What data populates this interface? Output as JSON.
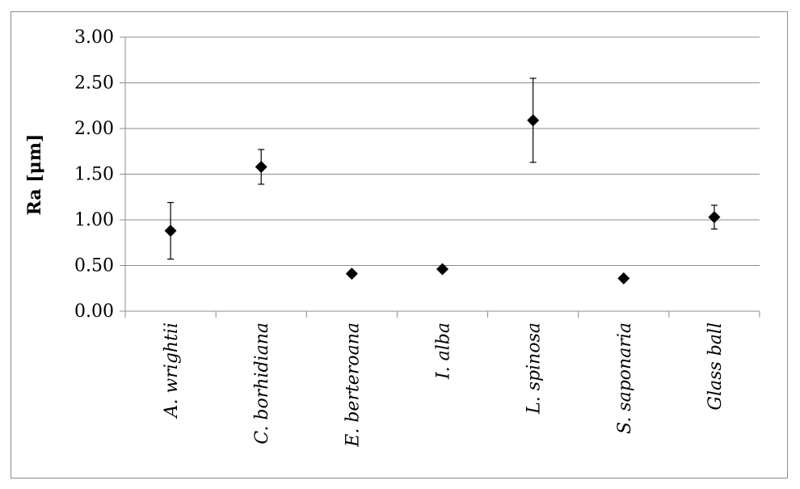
{
  "chart_data": {
    "type": "scatter",
    "title": "",
    "xlabel": "",
    "ylabel": "Ra [μm]",
    "ylim": [
      0,
      3
    ],
    "yticks": [
      "0.00",
      "0.50",
      "1.00",
      "1.50",
      "2.00",
      "2.50",
      "3.00"
    ],
    "grid": true,
    "legend": "none",
    "marker": "diamond",
    "marker_color": "#000000",
    "gridline_color": "#8c8c8c",
    "categories": [
      "A. wrightii",
      "C. borhidiana",
      "E. berteroana",
      "I. alba",
      "L. spinosa",
      "S. saponaria",
      "Glass ball"
    ],
    "values": [
      0.88,
      1.58,
      0.41,
      0.46,
      2.09,
      0.36,
      1.03
    ],
    "error": [
      0.31,
      0.19,
      0.03,
      0.02,
      0.46,
      0.02,
      0.13
    ]
  }
}
